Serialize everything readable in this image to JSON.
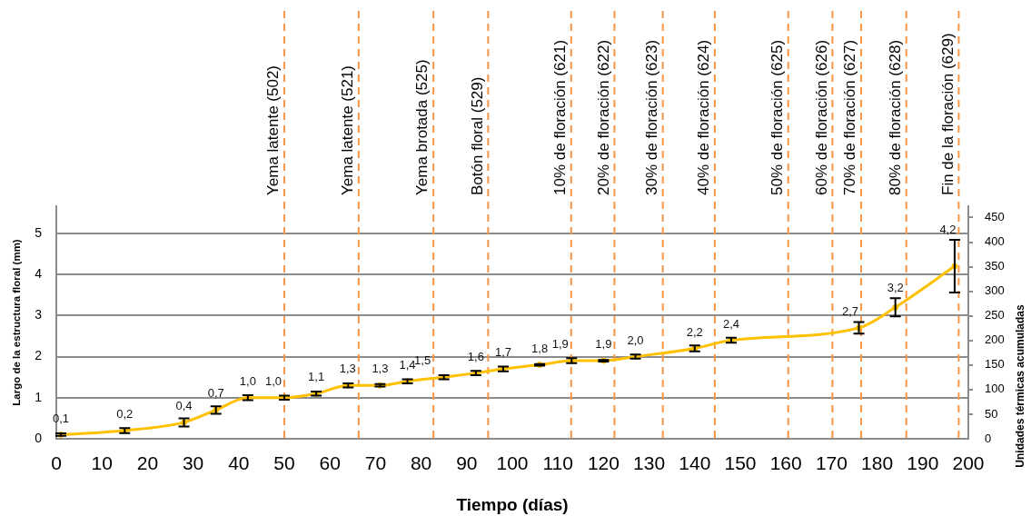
{
  "chart_data": {
    "type": "line",
    "xlabel": "Tiempo (días)",
    "ylabel": "Largo de la estructura floral (mm)",
    "y2label": "Unidades térmicas acumuladas",
    "x": [
      1,
      15,
      28,
      35,
      42,
      50,
      57,
      64,
      71,
      77,
      85,
      92,
      98,
      106,
      113,
      120,
      127,
      140,
      148,
      176,
      184,
      197
    ],
    "series": [
      {
        "color": "#ffc000",
        "values": [
          0.1,
          0.2,
          0.4,
          0.7,
          1.0,
          1.0,
          1.1,
          1.3,
          1.3,
          1.4,
          1.5,
          1.6,
          1.7,
          1.8,
          1.9,
          1.9,
          2.0,
          2.2,
          2.4,
          2.7,
          3.2,
          4.2
        ],
        "errors": [
          0.03,
          0.06,
          0.1,
          0.09,
          0.06,
          0.05,
          0.05,
          0.05,
          0.03,
          0.05,
          0.05,
          0.05,
          0.06,
          0.02,
          0.06,
          0.02,
          0.05,
          0.07,
          0.06,
          0.14,
          0.22,
          0.64
        ],
        "value_labels": [
          "0,1",
          "0,2",
          "0,4",
          "0,7",
          "1,0",
          "1,0",
          "1,1",
          "1,3",
          "1,3",
          "1,4",
          "1,5",
          "1,6",
          "1,7",
          "1,8",
          "1,9",
          "1,9",
          "2,0",
          "2,2",
          "2,4",
          "2,7",
          "3,2",
          "4,2"
        ]
      }
    ],
    "xlim": [
      0,
      200
    ],
    "xticks": [
      0,
      10,
      20,
      30,
      40,
      50,
      60,
      70,
      80,
      90,
      100,
      110,
      120,
      130,
      140,
      150,
      160,
      170,
      180,
      190,
      200
    ],
    "ylim": [
      0,
      5.66
    ],
    "yticks": [
      0,
      1,
      2,
      3,
      4,
      5
    ],
    "y2lim": [
      0,
      473
    ],
    "y2ticks": [
      0,
      50,
      100,
      150,
      200,
      250,
      300,
      350,
      400,
      450
    ],
    "ref_lines": [
      {
        "axis": "x",
        "value": 50,
        "label": "Yema latente (502)",
        "color": "#f79646",
        "line_style": "dashed"
      },
      {
        "axis": "x",
        "value": 66.3,
        "label": "Yema latente (521)",
        "color": "#f79646",
        "line_style": "dashed"
      },
      {
        "axis": "x",
        "value": 82.7,
        "label": "Yema brotada (525)",
        "color": "#f79646",
        "line_style": "dashed"
      },
      {
        "axis": "x",
        "value": 94.7,
        "label": "Botón floral (529)",
        "color": "#f79646",
        "line_style": "dashed"
      },
      {
        "axis": "x",
        "value": 112.9,
        "label": "10% de floración (621)",
        "color": "#f79646",
        "line_style": "dashed"
      },
      {
        "axis": "x",
        "value": 122.4,
        "label": "20% de floración (622)",
        "color": "#f79646",
        "line_style": "dashed"
      },
      {
        "axis": "x",
        "value": 133,
        "label": "30% de floración (623)",
        "color": "#f79646",
        "line_style": "dashed"
      },
      {
        "axis": "x",
        "value": 144.4,
        "label": "40% de floración (624)",
        "color": "#f79646",
        "line_style": "dashed"
      },
      {
        "axis": "x",
        "value": 160.5,
        "label": "50% de floración (625)",
        "color": "#f79646",
        "line_style": "dashed"
      },
      {
        "axis": "x",
        "value": 170.2,
        "label": "60% de floración (626)",
        "color": "#f79646",
        "line_style": "dashed"
      },
      {
        "axis": "x",
        "value": 176.5,
        "label": "70% de floración (627)",
        "color": "#f79646",
        "line_style": "dashed"
      },
      {
        "axis": "x",
        "value": 186.4,
        "label": "80% de floración (628)",
        "color": "#f79646",
        "line_style": "dashed"
      },
      {
        "axis": "x",
        "value": 197.9,
        "label": "Fin de la floración (629)",
        "color": "#f79646",
        "line_style": "dashed"
      }
    ],
    "grid": "y",
    "legend": false,
    "marker": "circle",
    "line_style": "solid"
  }
}
